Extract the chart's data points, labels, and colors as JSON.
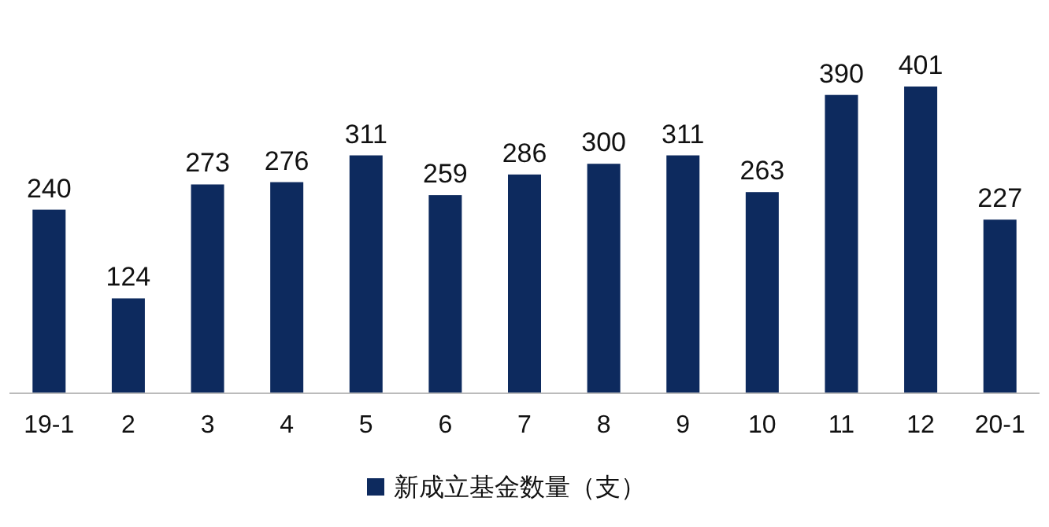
{
  "chart_data": {
    "type": "bar",
    "categories": [
      "19-1",
      "2",
      "3",
      "4",
      "5",
      "6",
      "7",
      "8",
      "9",
      "10",
      "11",
      "12",
      "20-1"
    ],
    "series": [
      {
        "name": "新成立基金数量（支）",
        "color": "#0d2a5e",
        "values": [
          240,
          124,
          273,
          276,
          311,
          259,
          286,
          300,
          311,
          263,
          390,
          401,
          227
        ]
      }
    ],
    "data_labels": true,
    "legend": "bottom"
  }
}
